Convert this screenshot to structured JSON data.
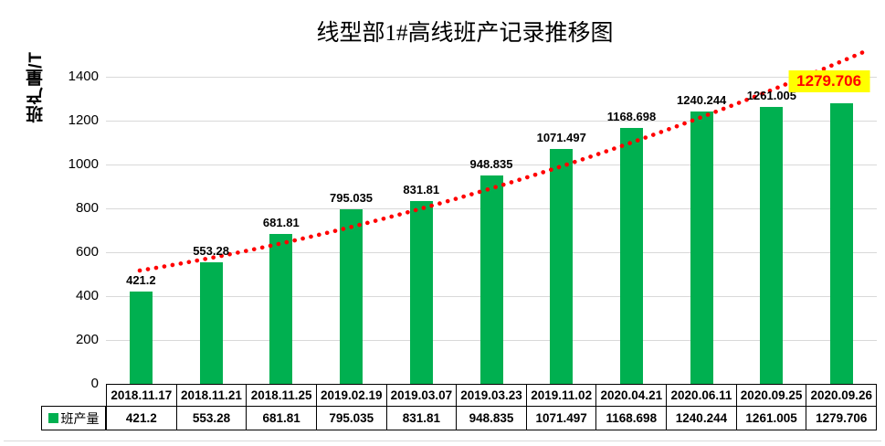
{
  "chart_data": {
    "type": "bar",
    "title": "线型部1#高线班产记录推移图",
    "ylabel": "班产量/T",
    "xlabel": "",
    "legend": "班产量",
    "legend_position": "bottom-left-table-cell",
    "grid": true,
    "ylim": [
      0,
      1400
    ],
    "yticks": [
      0,
      200,
      400,
      600,
      800,
      1000,
      1200,
      1400
    ],
    "categories": [
      "2018.11.17",
      "2018.11.21",
      "2018.11.25",
      "2019.02.19",
      "2019.03.07",
      "2019.03.23",
      "2019.11.02",
      "2020.04.21",
      "2020.06.11",
      "2020.09.25",
      "2020.09.26"
    ],
    "values": [
      421.2,
      553.28,
      681.81,
      795.035,
      831.81,
      948.835,
      1071.497,
      1168.698,
      1240.244,
      1261.005,
      1279.706
    ],
    "value_labels": [
      "421.2",
      "553.28",
      "681.81",
      "795.035",
      "831.81",
      "948.835",
      "1071.497",
      "1168.698",
      "1240.244",
      "1261.005",
      "1279.706"
    ],
    "trendline": {
      "style": "dotted",
      "color": "#FF0000",
      "description": "red dotted upward trend curve extending past last bar"
    },
    "colors": {
      "bar": "#00B050",
      "gridline": "#d9d9d9",
      "text": "#000000",
      "highlight_background": "#FFFF00",
      "highlight_text": "#FF0000"
    },
    "highlighted_label_index": 10
  }
}
